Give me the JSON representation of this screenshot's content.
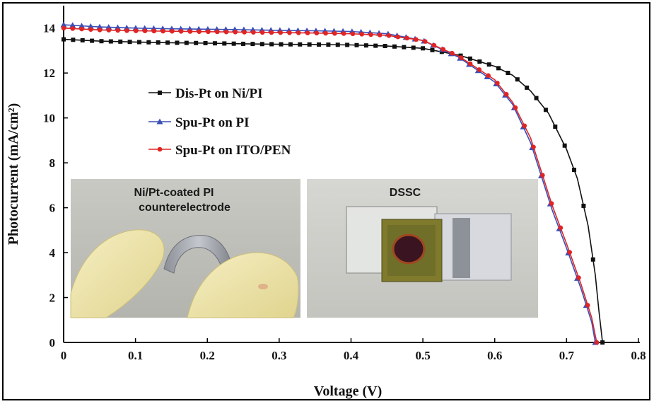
{
  "chart_data": {
    "type": "line",
    "xlabel": "Voltage (V)",
    "ylabel": "Photocurrent (mA/cm²)",
    "xlim": [
      0,
      0.8
    ],
    "ylim": [
      0,
      15
    ],
    "xticks": [
      "0",
      "0.1",
      "0.2",
      "0.3",
      "0.4",
      "0.5",
      "0.6",
      "0.7",
      "0.8"
    ],
    "yticks": [
      "0",
      "2",
      "4",
      "6",
      "8",
      "10",
      "12",
      "14"
    ],
    "legend_position": "center-left",
    "grid": false,
    "series": [
      {
        "name": "Dis-Pt on Ni/PI",
        "color": "#111111",
        "marker": "square",
        "points": [
          [
            0,
            13.5
          ],
          [
            0.05,
            13.42
          ],
          [
            0.1,
            13.38
          ],
          [
            0.15,
            13.35
          ],
          [
            0.2,
            13.33
          ],
          [
            0.25,
            13.3
          ],
          [
            0.3,
            13.28
          ],
          [
            0.35,
            13.27
          ],
          [
            0.4,
            13.25
          ],
          [
            0.45,
            13.2
          ],
          [
            0.5,
            13.1
          ],
          [
            0.55,
            12.8
          ],
          [
            0.6,
            12.3
          ],
          [
            0.625,
            11.9
          ],
          [
            0.65,
            11.2
          ],
          [
            0.675,
            10.2
          ],
          [
            0.7,
            8.6
          ],
          [
            0.715,
            7.3
          ],
          [
            0.73,
            5.2
          ],
          [
            0.74,
            3.0
          ],
          [
            0.745,
            1.4
          ],
          [
            0.75,
            0
          ]
        ]
      },
      {
        "name": "Spu-Pt on PI",
        "color": "#3a4fb8",
        "marker": "triangle",
        "points": [
          [
            0,
            14.15
          ],
          [
            0.05,
            14.05
          ],
          [
            0.1,
            14.0
          ],
          [
            0.15,
            13.97
          ],
          [
            0.2,
            13.95
          ],
          [
            0.25,
            13.93
          ],
          [
            0.3,
            13.9
          ],
          [
            0.35,
            13.88
          ],
          [
            0.4,
            13.85
          ],
          [
            0.45,
            13.75
          ],
          [
            0.5,
            13.45
          ],
          [
            0.55,
            12.7
          ],
          [
            0.6,
            11.6
          ],
          [
            0.625,
            10.6
          ],
          [
            0.65,
            8.9
          ],
          [
            0.665,
            7.4
          ],
          [
            0.68,
            5.9
          ],
          [
            0.7,
            4.2
          ],
          [
            0.72,
            2.4
          ],
          [
            0.735,
            0.9
          ],
          [
            0.74,
            0
          ]
        ]
      },
      {
        "name": "Spu-Pt on ITO/PEN",
        "color": "#e02424",
        "marker": "circle",
        "points": [
          [
            0,
            14.0
          ],
          [
            0.05,
            13.92
          ],
          [
            0.1,
            13.88
          ],
          [
            0.15,
            13.86
          ],
          [
            0.2,
            13.84
          ],
          [
            0.25,
            13.82
          ],
          [
            0.3,
            13.8
          ],
          [
            0.35,
            13.78
          ],
          [
            0.4,
            13.75
          ],
          [
            0.45,
            13.68
          ],
          [
            0.5,
            13.45
          ],
          [
            0.55,
            12.75
          ],
          [
            0.6,
            11.7
          ],
          [
            0.625,
            10.7
          ],
          [
            0.65,
            9.1
          ],
          [
            0.665,
            7.6
          ],
          [
            0.68,
            6.1
          ],
          [
            0.7,
            4.4
          ],
          [
            0.72,
            2.6
          ],
          [
            0.735,
            1.1
          ],
          [
            0.742,
            0
          ]
        ]
      }
    ]
  },
  "inset_left": {
    "caption_line1": "Ni/Pt-coated PI",
    "caption_line2": "counterelectrode"
  },
  "inset_right": {
    "caption": "DSSC"
  }
}
